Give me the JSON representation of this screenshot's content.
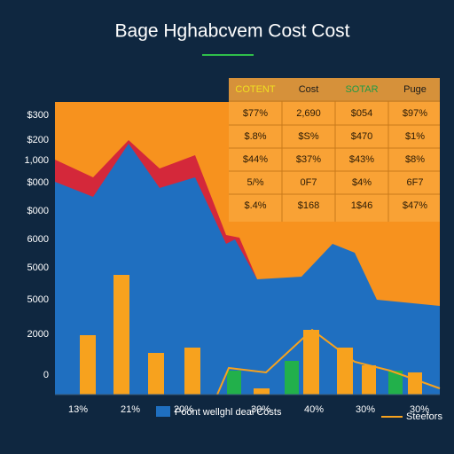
{
  "title": "Bage Hghabcvem Cost Cost",
  "y_axis_labels": [
    "$300",
    "$200",
    "1,000",
    "$000",
    "$000",
    "6000",
    "5000",
    "5000",
    "2000",
    "0"
  ],
  "x_axis_labels": [
    "13%",
    "21%",
    "20%",
    "30%",
    "40%",
    "30%",
    "30%"
  ],
  "table": {
    "header": [
      "COTENT",
      "Cost",
      "SOTAR",
      "Puge"
    ],
    "rows": [
      [
        "$77%",
        "2,690",
        "$054",
        "$97%"
      ],
      [
        "$.8%",
        "$S%",
        "$470",
        "$1%"
      ],
      [
        "$44%",
        "$37%",
        "$43%",
        "$8%"
      ],
      [
        "5/%",
        "0F7",
        "$4%",
        "6F7"
      ],
      [
        "$.4%",
        "$168",
        "1$46",
        "$47%"
      ]
    ]
  },
  "legend": [
    "Poont wellghl deal Costs",
    "Steefors"
  ]
}
